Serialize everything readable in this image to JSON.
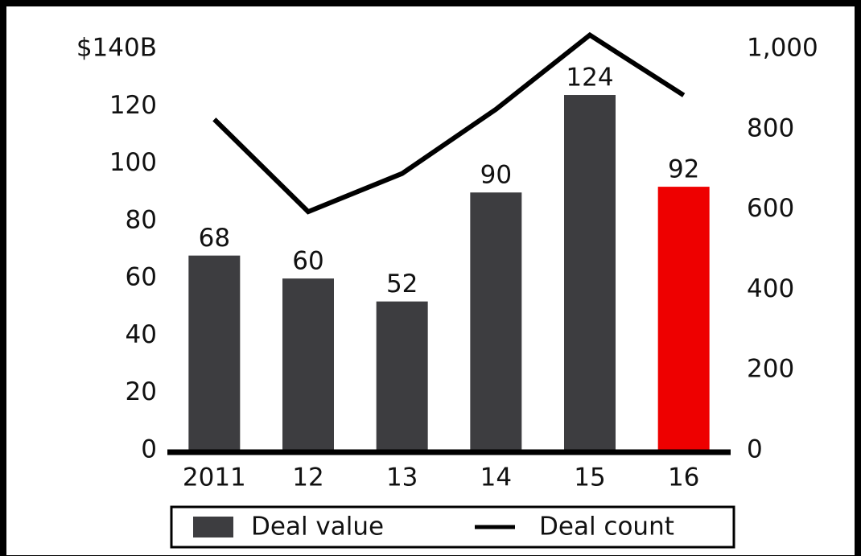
{
  "chart_data": {
    "type": "bar",
    "categories": [
      "2011",
      "12",
      "13",
      "14",
      "15",
      "16"
    ],
    "series": [
      {
        "name": "Deal value",
        "type": "bar",
        "color": "#3d3d40",
        "colors": [
          "#3d3d40",
          "#3d3d40",
          "#3d3d40",
          "#3d3d40",
          "#3d3d40",
          "#ee0000"
        ],
        "values": [
          68,
          60,
          52,
          90,
          124,
          92
        ]
      },
      {
        "name": "Deal count",
        "type": "line",
        "axis": "y2",
        "color": "#000000",
        "values": [
          825,
          595,
          690,
          850,
          1035,
          885
        ]
      }
    ],
    "ylim": [
      0,
      140
    ],
    "yticks": [
      0,
      20,
      40,
      60,
      80,
      100,
      120,
      {
        "value": 140,
        "label": "$140B"
      }
    ],
    "y2lim": [
      0,
      1000
    ],
    "y2ticks": [
      0,
      200,
      400,
      600,
      800,
      {
        "value": 1000,
        "label": "1,000"
      }
    ],
    "legend": "bottom"
  }
}
